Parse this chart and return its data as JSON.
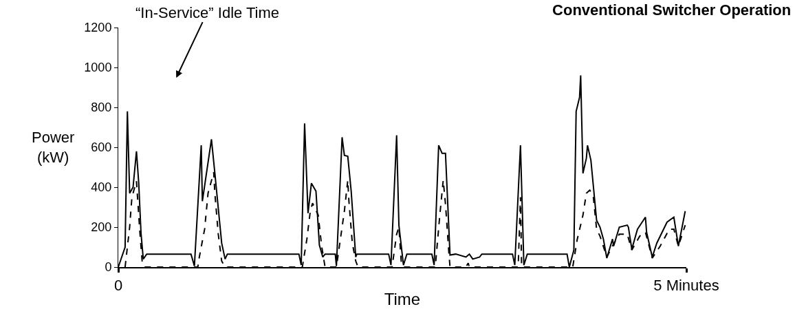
{
  "chart_data": {
    "type": "line",
    "title": "Conventional Switcher Operation",
    "xlabel": "Time",
    "ylabel": "Power\n(kW)",
    "annotations": [
      "“In-Service” Idle Time"
    ],
    "series": [
      {
        "color": "#000000",
        "line_style": "solid",
        "x": [
          0.0,
          0.06,
          0.08,
          0.1,
          0.13,
          0.16,
          0.18,
          0.2,
          0.22,
          0.25,
          0.64,
          0.67,
          0.73,
          0.74,
          0.82,
          0.85,
          0.91,
          0.94,
          0.96,
          1.59,
          1.61,
          1.64,
          1.67,
          1.7,
          1.74,
          1.77,
          1.8,
          1.82,
          1.91,
          1.92,
          1.97,
          1.99,
          2.02,
          2.05,
          2.09,
          2.1,
          2.38,
          2.4,
          2.45,
          2.47,
          2.51,
          2.54,
          2.76,
          2.78,
          2.82,
          2.85,
          2.88,
          2.92,
          2.97,
          3.06,
          3.09,
          3.12,
          3.18,
          3.2,
          3.47,
          3.49,
          3.54,
          3.57,
          3.6,
          3.95,
          3.97,
          4.01,
          4.03,
          4.06,
          4.07,
          4.09,
          4.12,
          4.13,
          4.16,
          4.21,
          4.24,
          4.27,
          4.3,
          4.35,
          4.36,
          4.41,
          4.48,
          4.49,
          4.52,
          4.57,
          4.64,
          4.65,
          4.7,
          4.74,
          4.83,
          4.89,
          4.93,
          4.99
        ],
        "values": [
          0,
          100,
          780,
          370,
          400,
          580,
          420,
          170,
          40,
          65,
          65,
          5,
          610,
          330,
          640,
          470,
          120,
          40,
          65,
          65,
          10,
          720,
          270,
          420,
          380,
          110,
          50,
          65,
          65,
          5,
          650,
          560,
          555,
          380,
          50,
          65,
          65,
          10,
          660,
          210,
          10,
          65,
          65,
          10,
          610,
          570,
          570,
          60,
          65,
          50,
          65,
          40,
          50,
          65,
          65,
          10,
          610,
          10,
          65,
          65,
          0,
          85,
          780,
          850,
          960,
          470,
          545,
          610,
          535,
          235,
          200,
          140,
          45,
          140,
          105,
          200,
          210,
          200,
          90,
          190,
          250,
          175,
          50,
          120,
          225,
          250,
          105,
          280
        ]
      },
      {
        "color": "#000000",
        "line_style": "dashed",
        "x": [
          0.06,
          0.1,
          0.12,
          0.16,
          0.19,
          0.21,
          0.23,
          0.7,
          0.71,
          0.76,
          0.79,
          0.84,
          0.85,
          0.88,
          0.91,
          0.94,
          1.62,
          1.66,
          1.69,
          1.71,
          1.76,
          1.79,
          1.82,
          1.92,
          1.99,
          2.02,
          2.03,
          2.06,
          2.09,
          2.11,
          2.41,
          2.45,
          2.47,
          2.49,
          2.51,
          2.79,
          2.83,
          2.86,
          2.88,
          2.91,
          2.92,
          3.06,
          3.08,
          3.09,
          3.52,
          3.54,
          3.55,
          4.0,
          4.04,
          4.09,
          4.12,
          4.15,
          4.18,
          4.21,
          4.24,
          4.3,
          4.35,
          4.41,
          4.48,
          4.52,
          4.59,
          4.64,
          4.7,
          4.77,
          4.85,
          4.89,
          4.93,
          4.99
        ],
        "values": [
          0,
          200,
          350,
          430,
          175,
          30,
          0,
          0,
          40,
          190,
          370,
          475,
          370,
          165,
          30,
          0,
          0,
          140,
          280,
          320,
          260,
          105,
          0,
          0,
          280,
          435,
          330,
          120,
          30,
          0,
          0,
          165,
          200,
          30,
          0,
          0,
          260,
          435,
          315,
          70,
          0,
          0,
          20,
          0,
          0,
          350,
          0,
          0,
          140,
          260,
          370,
          385,
          360,
          190,
          155,
          50,
          105,
          165,
          165,
          85,
          155,
          175,
          45,
          105,
          190,
          190,
          105,
          210
        ]
      }
    ],
    "xlim": [
      0,
      5
    ],
    "xticks": [
      {
        "value": 0,
        "label": "0"
      },
      {
        "value": 5,
        "label": "5 Minutes"
      }
    ],
    "ylim": [
      0,
      1200
    ],
    "yticks": [
      0,
      200,
      400,
      600,
      800,
      1000,
      1200
    ],
    "marker": "none"
  }
}
